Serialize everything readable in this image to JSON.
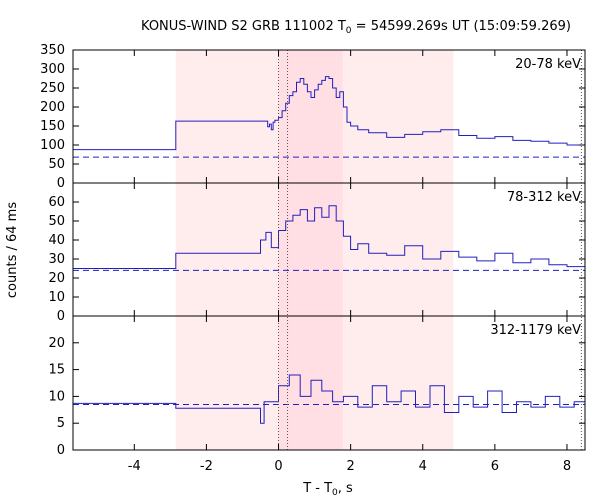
{
  "chart_data": {
    "type": "line",
    "title": "KONUS-WIND S2 GRB 111002 T",
    "title_sub": "0",
    "title_rest": " = 54599.269s UT (15:09:59.269)",
    "xlabel": "T - T",
    "xlabel_sub": "0",
    "xlabel_unit": ", s",
    "ylabel": "counts / 64 ms",
    "xlim": [
      -5.7,
      8.5
    ],
    "x_ticks": [
      -4,
      -2,
      0,
      2,
      4,
      6,
      8
    ],
    "shaded_regions": [
      {
        "from": -2.85,
        "to": 4.85,
        "color": "#ffecec"
      },
      {
        "from": 0.0,
        "to": 1.78,
        "color": "#ffdfe3"
      }
    ],
    "dotted_lines_x": [
      0.0,
      0.25,
      8.4
    ],
    "line_color": "#2020c0",
    "panels": [
      {
        "label": "20-78 keV",
        "ylim": [
          0,
          350
        ],
        "y_ticks": [
          0,
          50,
          100,
          150,
          200,
          250,
          300,
          350
        ],
        "background": 68,
        "steps": [
          [
            -5.7,
            88
          ],
          [
            -2.85,
            163
          ],
          [
            -0.3,
            148
          ],
          [
            -0.25,
            155
          ],
          [
            -0.2,
            140
          ],
          [
            -0.15,
            160
          ],
          [
            -0.1,
            165
          ],
          [
            0.0,
            172
          ],
          [
            0.1,
            190
          ],
          [
            0.2,
            210
          ],
          [
            0.3,
            230
          ],
          [
            0.4,
            240
          ],
          [
            0.5,
            265
          ],
          [
            0.6,
            275
          ],
          [
            0.7,
            260
          ],
          [
            0.8,
            240
          ],
          [
            0.9,
            225
          ],
          [
            1.0,
            245
          ],
          [
            1.1,
            260
          ],
          [
            1.2,
            270
          ],
          [
            1.3,
            280
          ],
          [
            1.4,
            275
          ],
          [
            1.5,
            250
          ],
          [
            1.6,
            225
          ],
          [
            1.7,
            240
          ],
          [
            1.8,
            200
          ],
          [
            1.9,
            160
          ],
          [
            2.0,
            150
          ],
          [
            2.2,
            140
          ],
          [
            2.5,
            132
          ],
          [
            3.0,
            120
          ],
          [
            3.5,
            128
          ],
          [
            4.0,
            135
          ],
          [
            4.5,
            140
          ],
          [
            5.0,
            125
          ],
          [
            5.5,
            118
          ],
          [
            6.0,
            122
          ],
          [
            6.5,
            112
          ],
          [
            7.0,
            110
          ],
          [
            7.5,
            105
          ],
          [
            8.0,
            100
          ],
          [
            8.5,
            100
          ]
        ]
      },
      {
        "label": "78-312 keV",
        "ylim": [
          0,
          70
        ],
        "y_ticks": [
          0,
          10,
          20,
          30,
          40,
          50,
          60
        ],
        "background": 24,
        "steps": [
          [
            -5.7,
            25
          ],
          [
            -2.85,
            33
          ],
          [
            -0.5,
            40
          ],
          [
            -0.35,
            44
          ],
          [
            -0.2,
            36
          ],
          [
            0.0,
            45
          ],
          [
            0.2,
            50
          ],
          [
            0.4,
            53
          ],
          [
            0.6,
            56
          ],
          [
            0.8,
            50
          ],
          [
            1.0,
            57
          ],
          [
            1.2,
            52
          ],
          [
            1.4,
            58
          ],
          [
            1.6,
            50
          ],
          [
            1.8,
            42
          ],
          [
            2.0,
            35
          ],
          [
            2.2,
            38
          ],
          [
            2.5,
            33
          ],
          [
            3.0,
            32
          ],
          [
            3.5,
            37
          ],
          [
            4.0,
            30
          ],
          [
            4.5,
            34
          ],
          [
            5.0,
            31
          ],
          [
            5.5,
            29
          ],
          [
            6.0,
            33
          ],
          [
            6.5,
            28
          ],
          [
            7.0,
            30
          ],
          [
            7.5,
            27
          ],
          [
            8.0,
            26
          ],
          [
            8.5,
            27
          ]
        ]
      },
      {
        "label": "312-1179 keV",
        "ylim": [
          0,
          25
        ],
        "y_ticks": [
          0,
          5,
          10,
          15,
          20
        ],
        "background": 8.5,
        "steps": [
          [
            -5.7,
            8.7
          ],
          [
            -2.85,
            7.8
          ],
          [
            -0.5,
            5
          ],
          [
            -0.4,
            9
          ],
          [
            0.0,
            12
          ],
          [
            0.3,
            14
          ],
          [
            0.6,
            10
          ],
          [
            0.9,
            13
          ],
          [
            1.2,
            11
          ],
          [
            1.5,
            9
          ],
          [
            1.8,
            10
          ],
          [
            2.2,
            8
          ],
          [
            2.6,
            12
          ],
          [
            3.0,
            9
          ],
          [
            3.4,
            11
          ],
          [
            3.8,
            8
          ],
          [
            4.2,
            12
          ],
          [
            4.6,
            7
          ],
          [
            5.0,
            10
          ],
          [
            5.4,
            8
          ],
          [
            5.8,
            11
          ],
          [
            6.2,
            7
          ],
          [
            6.6,
            9
          ],
          [
            7.0,
            8
          ],
          [
            7.4,
            10
          ],
          [
            7.8,
            8
          ],
          [
            8.2,
            9
          ],
          [
            8.5,
            9
          ]
        ]
      }
    ]
  }
}
